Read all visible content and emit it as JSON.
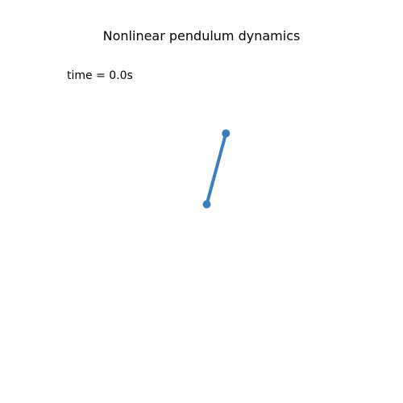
{
  "chart_data": {
    "type": "line",
    "title": "Nonlinear pendulum dynamics",
    "annotation": "time = 0.0s",
    "xlim": [
      -2.2,
      2.2
    ],
    "ylim": [
      -2.2,
      2.2
    ],
    "grid": false,
    "axes_visible": false,
    "series": [
      {
        "x": [
          0.0,
          0.27
        ],
        "y": [
          0.0,
          1.0
        ],
        "color": "#3a7ebf"
      }
    ]
  }
}
